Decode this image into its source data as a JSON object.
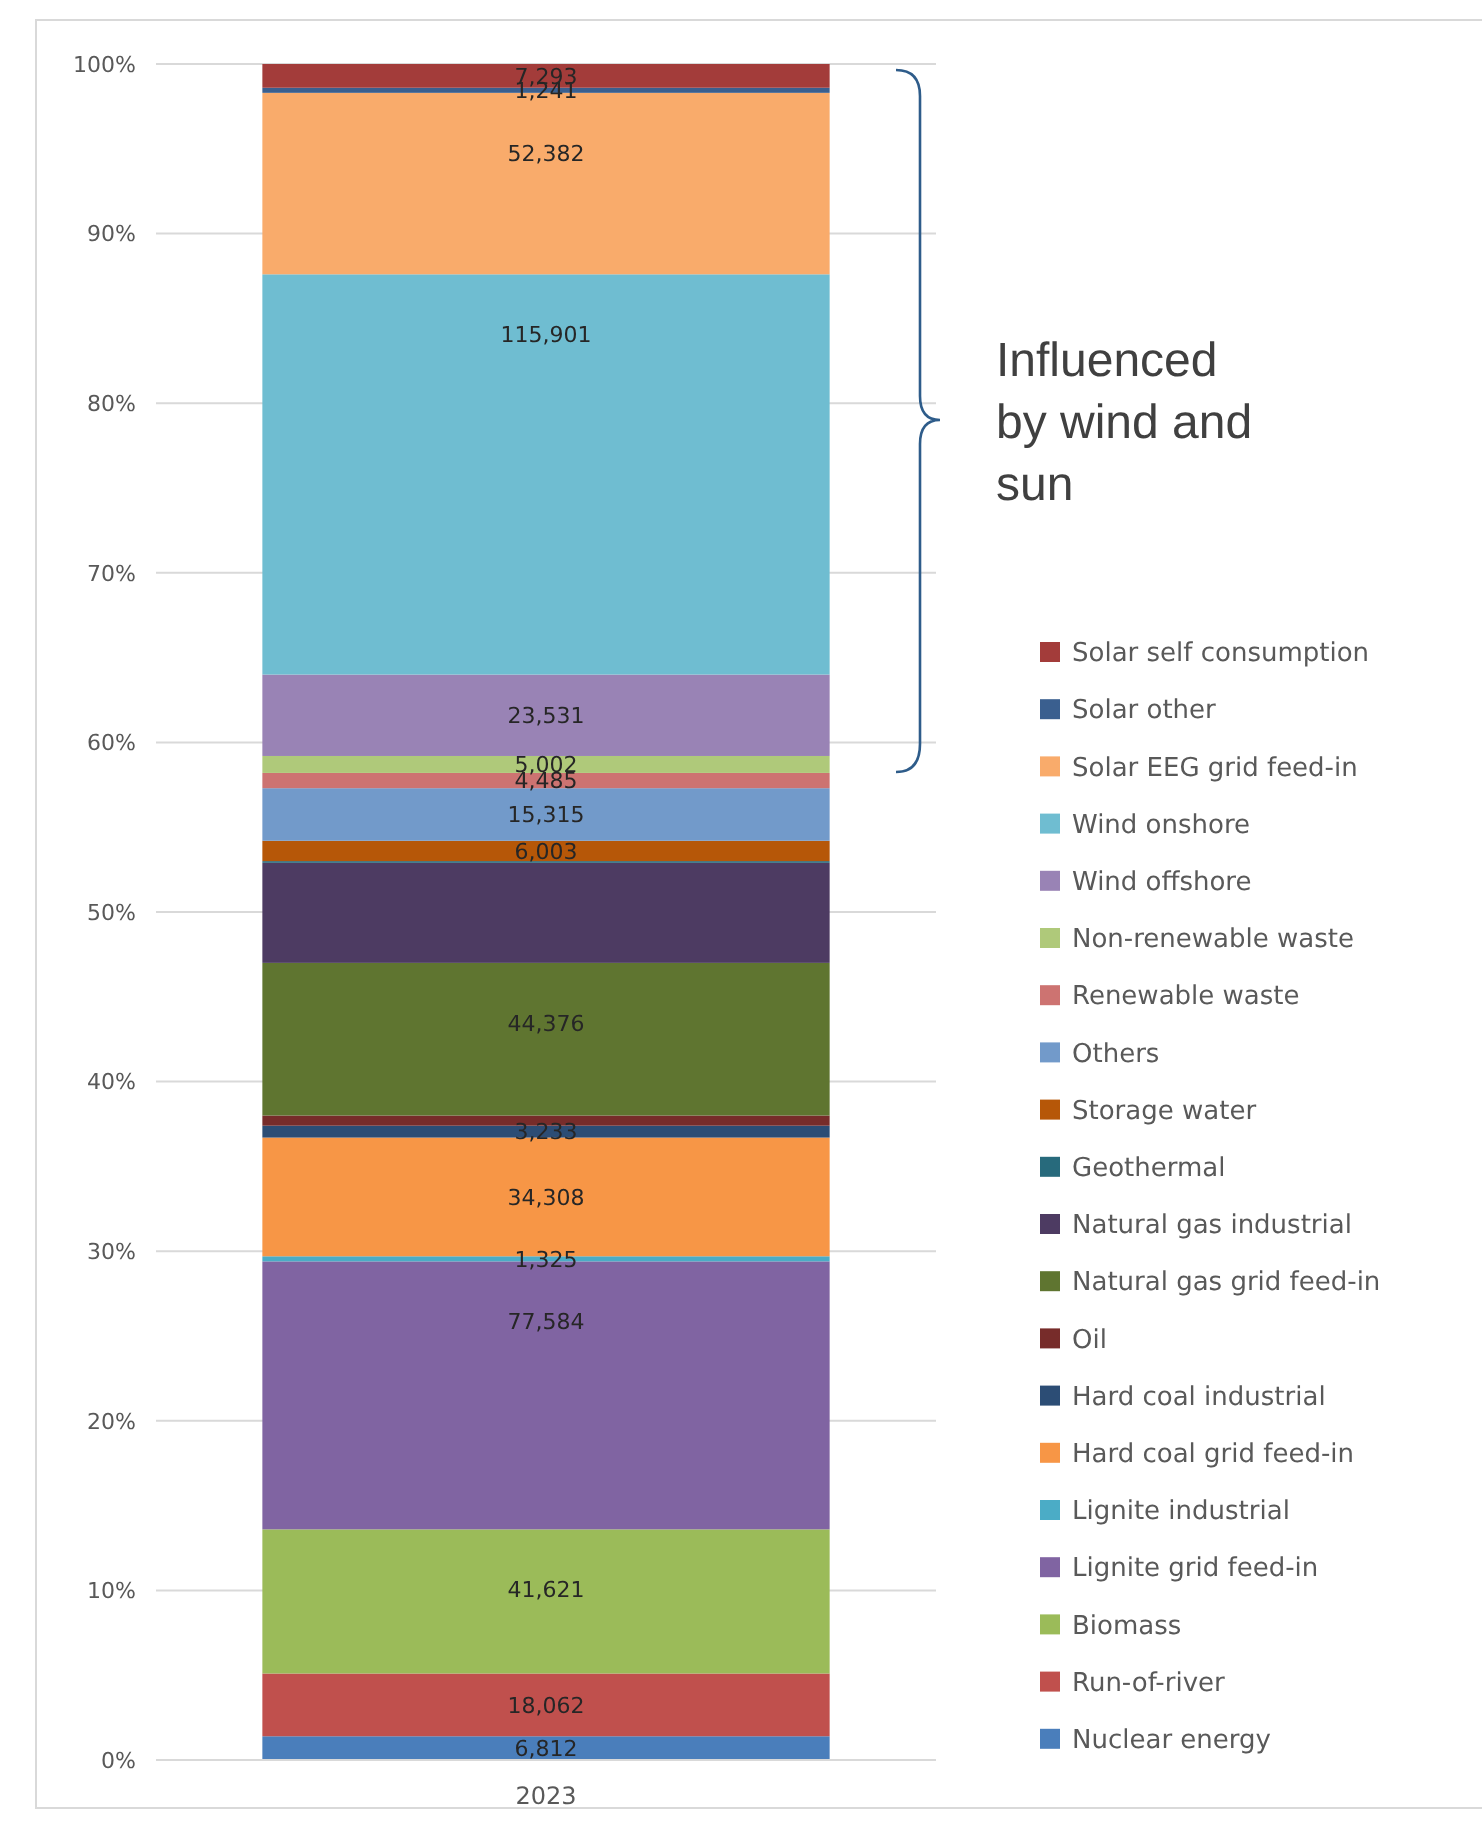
{
  "chart_data": {
    "type": "bar",
    "stacked": true,
    "categories": [
      "2023"
    ],
    "ylim": [
      0,
      100
    ],
    "yticks": [
      {
        "value": 0,
        "label": "0%"
      },
      {
        "value": 10,
        "label": "10%"
      },
      {
        "value": 20,
        "label": "20%"
      },
      {
        "value": 30,
        "label": "30%"
      },
      {
        "value": 40,
        "label": "40%"
      },
      {
        "value": 50,
        "label": "50%"
      },
      {
        "value": 60,
        "label": "60%"
      },
      {
        "value": 70,
        "label": "70%"
      },
      {
        "value": 80,
        "label": "80%"
      },
      {
        "value": 90,
        "label": "90%"
      },
      {
        "value": 100,
        "label": "100%"
      }
    ],
    "grid": "y",
    "legend": "right",
    "annotations": [
      "Influenced by wind and sun",
      {
        "text": "6,812",
        "x": "2023",
        "y": 1.4
      },
      {
        "text": "18,062",
        "x": "2023",
        "y": 5.1
      },
      {
        "text": "41,621",
        "x": "2023",
        "y": 13.6
      },
      {
        "text": "77,584",
        "x": "2023",
        "y": 29.4
      },
      {
        "text": "1,325",
        "x": "2023",
        "y": 29.7
      },
      {
        "text": "34,308",
        "x": "2023",
        "y": 36.7
      },
      {
        "text": "3,233",
        "x": "2023",
        "y": 37.4
      },
      {
        "text": "44,376",
        "x": "2023",
        "y": 47.0
      },
      {
        "text": "6,003",
        "x": "2023",
        "y": 54.2
      },
      {
        "text": "15,315",
        "x": "2023",
        "y": 57.3
      },
      {
        "text": "4,485",
        "x": "2023",
        "y": 58.2
      },
      {
        "text": "5,002",
        "x": "2023",
        "y": 59.2
      },
      {
        "text": "23,531",
        "x": "2023",
        "y": 64.0
      },
      {
        "text": "115,901",
        "x": "2023",
        "y": 87.6
      },
      {
        "text": "52,382",
        "x": "2023",
        "y": 98.3
      },
      {
        "text": "1,241",
        "x": "2023",
        "y": 98.6
      },
      {
        "text": "7,293",
        "x": "2023",
        "y": 100.0
      }
    ],
    "series": [
      {
        "name": "Nuclear energy",
        "color": "#4a7ebb",
        "values": [
          1.4
        ]
      },
      {
        "name": "Run-of-river",
        "color": "#c0504d",
        "values": [
          3.7
        ]
      },
      {
        "name": "Biomass",
        "color": "#9bbb59",
        "values": [
          8.5
        ]
      },
      {
        "name": "Lignite grid feed-in",
        "color": "#8064a2",
        "values": [
          15.8
        ]
      },
      {
        "name": "Lignite industrial",
        "color": "#4bacc6",
        "values": [
          0.3
        ]
      },
      {
        "name": "Hard coal grid feed-in",
        "color": "#f79646",
        "values": [
          7.0
        ]
      },
      {
        "name": "Hard coal industrial",
        "color": "#2c4d75",
        "values": [
          0.7
        ]
      },
      {
        "name": "Oil",
        "color": "#772c2a",
        "values": [
          0.6
        ]
      },
      {
        "name": "Natural gas grid feed-in",
        "color": "#5f7530",
        "values": [
          9.0
        ]
      },
      {
        "name": "Natural gas industrial",
        "color": "#4d3b62",
        "values": [
          5.9
        ]
      },
      {
        "name": "Geothermal",
        "color": "#276a7c",
        "values": [
          0.1
        ]
      },
      {
        "name": "Storage water",
        "color": "#b65708",
        "values": [
          1.2
        ]
      },
      {
        "name": "Others",
        "color": "#729aca",
        "values": [
          3.1
        ]
      },
      {
        "name": "Renewable waste",
        "color": "#cd7371",
        "values": [
          0.9
        ]
      },
      {
        "name": "Non-renewable waste",
        "color": "#afc97a",
        "values": [
          1.0
        ]
      },
      {
        "name": "Wind offshore",
        "color": "#9983b5",
        "values": [
          4.8
        ]
      },
      {
        "name": "Wind onshore",
        "color": "#6fbdd1",
        "values": [
          23.6
        ]
      },
      {
        "name": "Solar EEG grid feed-in",
        "color": "#f9ab6b",
        "values": [
          10.7
        ]
      },
      {
        "name": "Solar other",
        "color": "#3a5f8f",
        "values": [
          0.3
        ]
      },
      {
        "name": "Solar self consumption",
        "color": "#a33c3a",
        "values": [
          1.4
        ]
      }
    ]
  }
}
